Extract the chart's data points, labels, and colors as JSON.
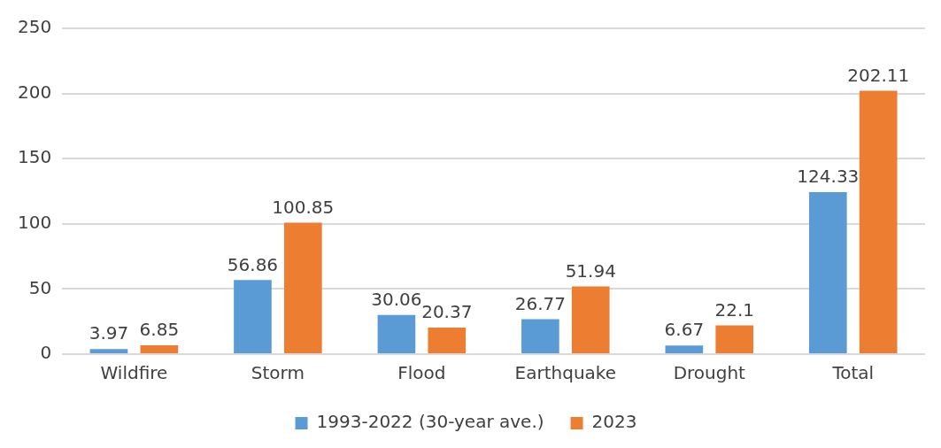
{
  "chart_data": {
    "type": "bar",
    "categories": [
      "Wildfire",
      "Storm",
      "Flood",
      "Earthquake",
      "Drought",
      "Total"
    ],
    "series": [
      {
        "name": "1993-2022 (30-year ave.)",
        "color": "#5b9bd5",
        "values": [
          3.97,
          56.86,
          30.06,
          26.77,
          6.67,
          124.33
        ]
      },
      {
        "name": "2023",
        "color": "#ed7d31",
        "values": [
          6.85,
          100.85,
          20.37,
          51.94,
          22.1,
          202.11
        ]
      }
    ],
    "ylim": [
      0,
      250
    ],
    "yticks": [
      0,
      50,
      100,
      150,
      200,
      250
    ],
    "grid": "y",
    "legend": "bottom",
    "data_labels": true
  }
}
